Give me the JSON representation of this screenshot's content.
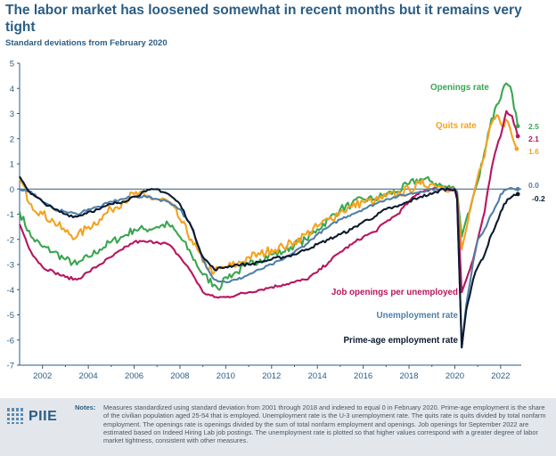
{
  "header": {
    "title": "The labor market has loosened somewhat in recent months but it remains very tight",
    "subtitle": "Standard deviations from February 2020"
  },
  "footer": {
    "logo_text": "PIIE",
    "notes_label": "Notes:",
    "notes_text": "Measures standardized using standard deviation from 2001 through 2018 and indexed to equal 0 in February 2020. Prime-age employment is the share of the civilian population aged 25-54 that is employed. Unemployment rate is the U-3 unemployment rate. The quits rate is quits divided by total nonfarm employment. The openings rate is openings divided by the sum of total nonfarm employment and openings. Job openings for September 2022 are estimated based on Indeed Hiring Lab job postings. The unemployment rate is plotted so that higher values correspond with a greater degree of labor market tightness, consistent with other measures."
  },
  "chart_data": {
    "type": "line",
    "title": "The labor market has loosened somewhat in recent months but it remains very tight",
    "ylabel": "Standard deviations from February 2020",
    "xlabel": "",
    "xlim": [
      2001,
      2022.9
    ],
    "ylim": [
      -7,
      5
    ],
    "x_ticks": [
      2002,
      2004,
      2006,
      2008,
      2010,
      2012,
      2014,
      2016,
      2018,
      2020,
      2022
    ],
    "y_ticks": [
      5,
      4,
      3,
      2,
      1,
      0,
      -1,
      -2,
      -3,
      -4,
      -5,
      -6,
      -7
    ],
    "grid": false,
    "series": [
      {
        "name": "Openings rate",
        "color": "#3aa650",
        "end_value_label": "2.5",
        "points": [
          [
            2001,
            -0.9
          ],
          [
            2001.5,
            -1.9
          ],
          [
            2002,
            -2.3
          ],
          [
            2002.5,
            -2.5
          ],
          [
            2003,
            -2.8
          ],
          [
            2003.5,
            -3.0
          ],
          [
            2004,
            -2.7
          ],
          [
            2004.5,
            -2.4
          ],
          [
            2005,
            -2.1
          ],
          [
            2005.5,
            -1.9
          ],
          [
            2006,
            -1.6
          ],
          [
            2006.5,
            -1.6
          ],
          [
            2007,
            -1.5
          ],
          [
            2007.5,
            -1.4
          ],
          [
            2008,
            -1.9
          ],
          [
            2008.5,
            -2.6
          ],
          [
            2009,
            -3.4
          ],
          [
            2009.5,
            -3.8
          ],
          [
            2009.8,
            -3.9
          ],
          [
            2010,
            -3.5
          ],
          [
            2010.5,
            -3.3
          ],
          [
            2011,
            -3.0
          ],
          [
            2011.5,
            -2.8
          ],
          [
            2012,
            -2.6
          ],
          [
            2012.5,
            -2.5
          ],
          [
            2013,
            -2.2
          ],
          [
            2013.5,
            -2.0
          ],
          [
            2014,
            -1.6
          ],
          [
            2014.5,
            -1.2
          ],
          [
            2015,
            -0.8
          ],
          [
            2015.5,
            -0.6
          ],
          [
            2016,
            -0.4
          ],
          [
            2016.5,
            -0.4
          ],
          [
            2017,
            -0.2
          ],
          [
            2017.5,
            -0.1
          ],
          [
            2018,
            0.2
          ],
          [
            2018.5,
            0.4
          ],
          [
            2019,
            0.3
          ],
          [
            2019.5,
            0.1
          ],
          [
            2020,
            0.0
          ],
          [
            2020.1,
            -0.1
          ],
          [
            2020.3,
            -1.9
          ],
          [
            2020.5,
            -1.2
          ],
          [
            2020.8,
            -0.3
          ],
          [
            2021,
            0.3
          ],
          [
            2021.3,
            1.5
          ],
          [
            2021.6,
            2.8
          ],
          [
            2021.9,
            3.4
          ],
          [
            2022,
            3.6
          ],
          [
            2022.25,
            4.2
          ],
          [
            2022.5,
            3.8
          ],
          [
            2022.75,
            2.5
          ]
        ]
      },
      {
        "name": "Quits rate",
        "color": "#f4a21f",
        "end_value_label": "1.6",
        "points": [
          [
            2001,
            0.4
          ],
          [
            2001.5,
            -0.6
          ],
          [
            2002,
            -1.0
          ],
          [
            2002.5,
            -1.3
          ],
          [
            2003,
            -1.7
          ],
          [
            2003.5,
            -1.9
          ],
          [
            2004,
            -1.5
          ],
          [
            2004.5,
            -1.2
          ],
          [
            2005,
            -0.8
          ],
          [
            2005.5,
            -0.5
          ],
          [
            2006,
            -0.2
          ],
          [
            2006.5,
            -0.3
          ],
          [
            2007,
            -0.4
          ],
          [
            2007.5,
            -0.5
          ],
          [
            2008,
            -1.2
          ],
          [
            2008.5,
            -2.0
          ],
          [
            2009,
            -2.9
          ],
          [
            2009.5,
            -3.3
          ],
          [
            2010,
            -3.1
          ],
          [
            2010.5,
            -3.0
          ],
          [
            2011,
            -2.7
          ],
          [
            2011.5,
            -2.6
          ],
          [
            2012,
            -2.4
          ],
          [
            2012.5,
            -2.3
          ],
          [
            2013,
            -2.1
          ],
          [
            2013.5,
            -1.8
          ],
          [
            2014,
            -1.5
          ],
          [
            2014.5,
            -1.2
          ],
          [
            2015,
            -0.9
          ],
          [
            2015.5,
            -0.7
          ],
          [
            2016,
            -0.5
          ],
          [
            2016.5,
            -0.5
          ],
          [
            2017,
            -0.3
          ],
          [
            2017.5,
            -0.2
          ],
          [
            2018,
            0.0
          ],
          [
            2018.5,
            0.2
          ],
          [
            2019,
            0.2
          ],
          [
            2019.5,
            0.1
          ],
          [
            2020,
            0.0
          ],
          [
            2020.1,
            -0.2
          ],
          [
            2020.3,
            -2.4
          ],
          [
            2020.5,
            -1.6
          ],
          [
            2020.8,
            -0.3
          ],
          [
            2021,
            0.5
          ],
          [
            2021.3,
            1.3
          ],
          [
            2021.6,
            2.6
          ],
          [
            2021.9,
            2.9
          ],
          [
            2022,
            2.6
          ],
          [
            2022.3,
            2.7
          ],
          [
            2022.5,
            2.1
          ],
          [
            2022.7,
            1.6
          ]
        ]
      },
      {
        "name": "Job openings per unemployed",
        "color": "#b8155f",
        "end_value_label": "2.1",
        "points": [
          [
            2001,
            -1.4
          ],
          [
            2001.5,
            -2.5
          ],
          [
            2002,
            -3.1
          ],
          [
            2002.5,
            -3.3
          ],
          [
            2003,
            -3.5
          ],
          [
            2003.5,
            -3.6
          ],
          [
            2004,
            -3.3
          ],
          [
            2004.5,
            -3.0
          ],
          [
            2005,
            -2.7
          ],
          [
            2005.5,
            -2.4
          ],
          [
            2006,
            -2.1
          ],
          [
            2006.5,
            -2.1
          ],
          [
            2007,
            -2.1
          ],
          [
            2007.5,
            -2.2
          ],
          [
            2008,
            -2.7
          ],
          [
            2008.5,
            -3.3
          ],
          [
            2009,
            -4.1
          ],
          [
            2009.5,
            -4.3
          ],
          [
            2010,
            -4.3
          ],
          [
            2010.5,
            -4.2
          ],
          [
            2011,
            -4.1
          ],
          [
            2011.5,
            -4.0
          ],
          [
            2012,
            -3.9
          ],
          [
            2012.5,
            -3.8
          ],
          [
            2013,
            -3.7
          ],
          [
            2013.5,
            -3.6
          ],
          [
            2014,
            -3.3
          ],
          [
            2014.5,
            -2.9
          ],
          [
            2015,
            -2.5
          ],
          [
            2015.5,
            -2.2
          ],
          [
            2016,
            -1.9
          ],
          [
            2016.5,
            -1.7
          ],
          [
            2017,
            -1.3
          ],
          [
            2017.5,
            -1.0
          ],
          [
            2018,
            -0.5
          ],
          [
            2018.5,
            -0.1
          ],
          [
            2019,
            0.0
          ],
          [
            2019.5,
            0.0
          ],
          [
            2020,
            0.0
          ],
          [
            2020.1,
            -0.2
          ],
          [
            2020.3,
            -4.1
          ],
          [
            2020.5,
            -3.6
          ],
          [
            2020.8,
            -2.8
          ],
          [
            2021,
            -2.0
          ],
          [
            2021.3,
            -0.9
          ],
          [
            2021.6,
            0.8
          ],
          [
            2021.9,
            1.9
          ],
          [
            2022,
            2.1
          ],
          [
            2022.25,
            3.1
          ],
          [
            2022.5,
            2.9
          ],
          [
            2022.75,
            2.1
          ]
        ]
      },
      {
        "name": "Unemployment rate",
        "color": "#4f7fa8",
        "end_value_label": "0.0",
        "points": [
          [
            2001,
            0.0
          ],
          [
            2001.5,
            -0.1
          ],
          [
            2002,
            -0.5
          ],
          [
            2002.5,
            -0.8
          ],
          [
            2003,
            -0.9
          ],
          [
            2003.5,
            -1.0
          ],
          [
            2004,
            -0.8
          ],
          [
            2004.5,
            -0.7
          ],
          [
            2005,
            -0.5
          ],
          [
            2005.5,
            -0.4
          ],
          [
            2006,
            -0.3
          ],
          [
            2006.5,
            -0.3
          ],
          [
            2007,
            -0.4
          ],
          [
            2007.5,
            -0.5
          ],
          [
            2008,
            -0.8
          ],
          [
            2008.5,
            -1.5
          ],
          [
            2009,
            -2.8
          ],
          [
            2009.5,
            -3.6
          ],
          [
            2010,
            -3.7
          ],
          [
            2010.5,
            -3.6
          ],
          [
            2011,
            -3.4
          ],
          [
            2011.5,
            -3.2
          ],
          [
            2012,
            -3.0
          ],
          [
            2012.5,
            -2.8
          ],
          [
            2013,
            -2.5
          ],
          [
            2013.5,
            -2.2
          ],
          [
            2014,
            -1.8
          ],
          [
            2014.5,
            -1.5
          ],
          [
            2015,
            -1.2
          ],
          [
            2015.5,
            -1.0
          ],
          [
            2016,
            -0.8
          ],
          [
            2016.5,
            -0.6
          ],
          [
            2017,
            -0.4
          ],
          [
            2017.5,
            -0.3
          ],
          [
            2018,
            -0.2
          ],
          [
            2018.5,
            -0.1
          ],
          [
            2019,
            0.0
          ],
          [
            2019.5,
            0.0
          ],
          [
            2020,
            0.0
          ],
          [
            2020.1,
            -0.4
          ],
          [
            2020.3,
            -6.3
          ],
          [
            2020.5,
            -4.6
          ],
          [
            2020.8,
            -2.9
          ],
          [
            2021,
            -2.0
          ],
          [
            2021.3,
            -1.6
          ],
          [
            2021.6,
            -1.0
          ],
          [
            2021.9,
            -0.5
          ],
          [
            2022,
            -0.2
          ],
          [
            2022.3,
            0.0
          ],
          [
            2022.6,
            0.0
          ],
          [
            2022.75,
            0.0
          ]
        ]
      },
      {
        "name": "Prime-age employment rate",
        "color": "#0b1a2e",
        "end_value_label": "-0.2",
        "points": [
          [
            2001,
            0.5
          ],
          [
            2001.5,
            -0.2
          ],
          [
            2002,
            -0.5
          ],
          [
            2002.5,
            -0.8
          ],
          [
            2003,
            -1.0
          ],
          [
            2003.5,
            -1.1
          ],
          [
            2004,
            -0.9
          ],
          [
            2004.5,
            -0.8
          ],
          [
            2005,
            -0.6
          ],
          [
            2005.5,
            -0.5
          ],
          [
            2006,
            -0.3
          ],
          [
            2006.5,
            -0.1
          ],
          [
            2007,
            0.0
          ],
          [
            2007.5,
            -0.2
          ],
          [
            2008,
            -0.6
          ],
          [
            2008.5,
            -1.5
          ],
          [
            2009,
            -2.7
          ],
          [
            2009.5,
            -3.2
          ],
          [
            2010,
            -3.1
          ],
          [
            2010.5,
            -3.0
          ],
          [
            2011,
            -3.0
          ],
          [
            2011.5,
            -2.9
          ],
          [
            2012,
            -2.8
          ],
          [
            2012.5,
            -2.7
          ],
          [
            2013,
            -2.6
          ],
          [
            2013.5,
            -2.4
          ],
          [
            2014,
            -2.2
          ],
          [
            2014.5,
            -2.0
          ],
          [
            2015,
            -1.8
          ],
          [
            2015.5,
            -1.6
          ],
          [
            2016,
            -1.3
          ],
          [
            2016.5,
            -1.1
          ],
          [
            2017,
            -0.8
          ],
          [
            2017.5,
            -0.7
          ],
          [
            2018,
            -0.5
          ],
          [
            2018.5,
            -0.3
          ],
          [
            2019,
            -0.2
          ],
          [
            2019.5,
            0.0
          ],
          [
            2020,
            0.0
          ],
          [
            2020.1,
            -0.4
          ],
          [
            2020.3,
            -6.3
          ],
          [
            2020.5,
            -4.8
          ],
          [
            2020.8,
            -3.6
          ],
          [
            2021,
            -3.1
          ],
          [
            2021.3,
            -2.6
          ],
          [
            2021.6,
            -1.8
          ],
          [
            2021.9,
            -1.2
          ],
          [
            2022,
            -0.9
          ],
          [
            2022.3,
            -0.4
          ],
          [
            2022.5,
            -0.3
          ],
          [
            2022.75,
            -0.2
          ]
        ]
      }
    ],
    "annotations": [
      {
        "text": "Openings rate",
        "color": "#3aa650",
        "series": "Openings rate"
      },
      {
        "text": "Quits rate",
        "color": "#f4a21f",
        "series": "Quits rate"
      },
      {
        "text": "Job openings per unemployed",
        "color": "#b8155f",
        "series": "Job openings per unemployed"
      },
      {
        "text": "Unemployment rate",
        "color": "#4f7fa8",
        "series": "Unemployment rate"
      },
      {
        "text": "Prime-age employment rate",
        "color": "#0b1a2e",
        "series": "Prime-age employment rate"
      }
    ]
  }
}
